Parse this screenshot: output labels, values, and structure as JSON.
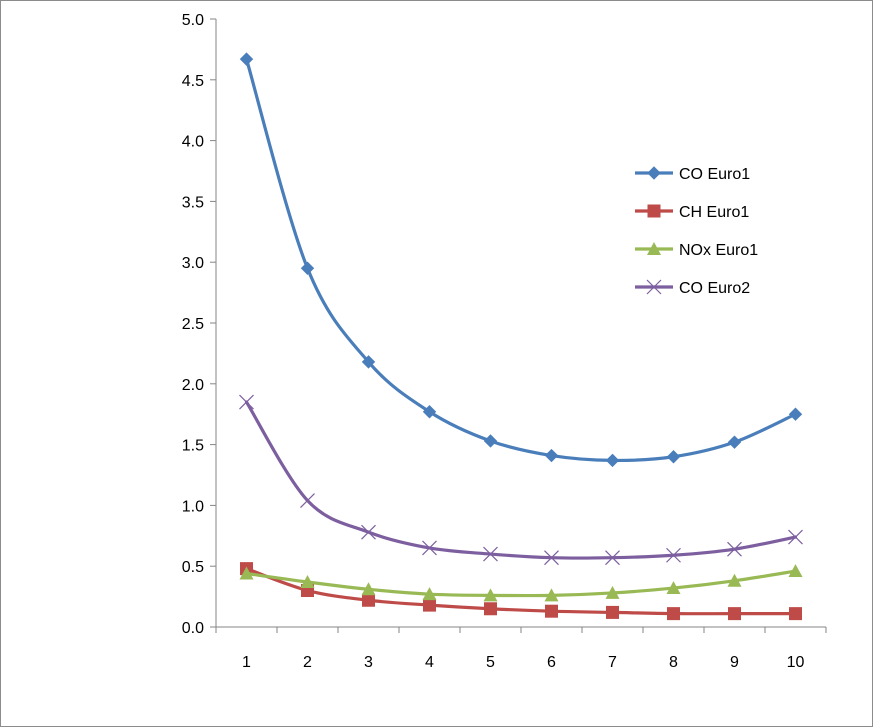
{
  "chart_data": {
    "type": "line",
    "title": "",
    "xlabel": "",
    "ylabel": "",
    "x": [
      1,
      2,
      3,
      4,
      5,
      6,
      7,
      8,
      9,
      10
    ],
    "ylim": [
      0.0,
      5.0
    ],
    "yticks": [
      "0.0",
      "0.5",
      "1.0",
      "1.5",
      "2.0",
      "2.5",
      "3.0",
      "3.5",
      "4.0",
      "4.5",
      "5.0"
    ],
    "xticks": [
      "1",
      "2",
      "3",
      "4",
      "5",
      "6",
      "7",
      "8",
      "9",
      "10"
    ],
    "grid": false,
    "legend_position": "right",
    "series": [
      {
        "name": "CO Euro1",
        "color": "#4a7ebb",
        "marker": "diamond",
        "values": [
          4.67,
          2.95,
          2.18,
          1.77,
          1.53,
          1.41,
          1.37,
          1.4,
          1.52,
          1.75
        ]
      },
      {
        "name": "CH Euro1",
        "color": "#be4b48",
        "marker": "square",
        "values": [
          0.48,
          0.3,
          0.22,
          0.18,
          0.15,
          0.13,
          0.12,
          0.11,
          0.11,
          0.11
        ]
      },
      {
        "name": "NOx Euro1",
        "color": "#98b954",
        "marker": "triangle",
        "values": [
          0.44,
          0.37,
          0.31,
          0.27,
          0.26,
          0.26,
          0.28,
          0.32,
          0.38,
          0.46
        ]
      },
      {
        "name": "CO Euro2",
        "color": "#7d5fa0",
        "marker": "x",
        "values": [
          1.85,
          1.04,
          0.78,
          0.65,
          0.6,
          0.57,
          0.57,
          0.59,
          0.64,
          0.74
        ]
      }
    ]
  }
}
